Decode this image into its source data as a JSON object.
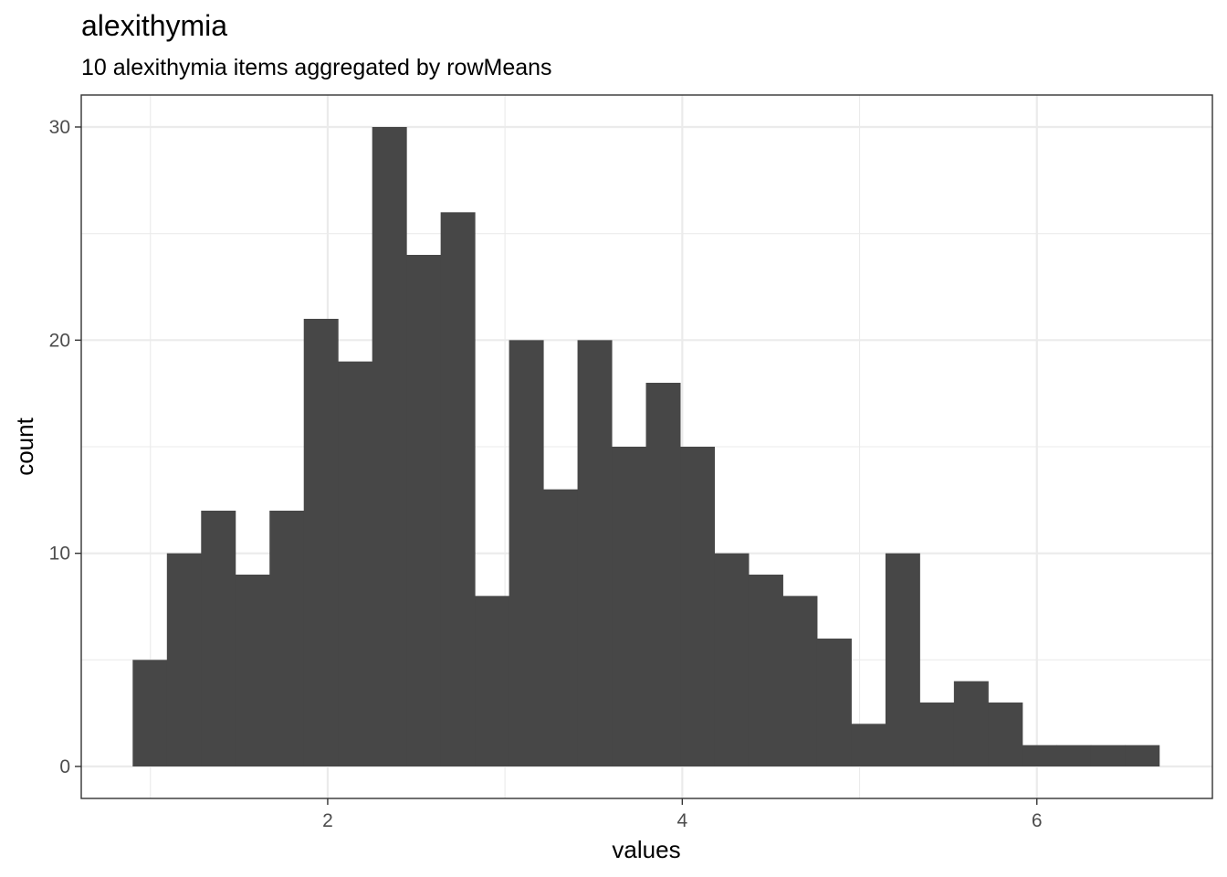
{
  "chart_data": {
    "type": "bar",
    "title": "alexithymia",
    "subtitle": "10 alexithymia items aggregated by rowMeans",
    "xlabel": "values",
    "ylabel": "count",
    "bin_width": 0.193,
    "bins": [
      {
        "x0": 0.9,
        "count": 5
      },
      {
        "x0": 1.093,
        "count": 10
      },
      {
        "x0": 1.286,
        "count": 12
      },
      {
        "x0": 1.479,
        "count": 9
      },
      {
        "x0": 1.672,
        "count": 12
      },
      {
        "x0": 1.865,
        "count": 21
      },
      {
        "x0": 2.058,
        "count": 19
      },
      {
        "x0": 2.251,
        "count": 30
      },
      {
        "x0": 2.444,
        "count": 24
      },
      {
        "x0": 2.637,
        "count": 26
      },
      {
        "x0": 2.83,
        "count": 8
      },
      {
        "x0": 3.023,
        "count": 20
      },
      {
        "x0": 3.216,
        "count": 13
      },
      {
        "x0": 3.409,
        "count": 20
      },
      {
        "x0": 3.602,
        "count": 15
      },
      {
        "x0": 3.795,
        "count": 18
      },
      {
        "x0": 3.988,
        "count": 15
      },
      {
        "x0": 4.181,
        "count": 10
      },
      {
        "x0": 4.374,
        "count": 9
      },
      {
        "x0": 4.567,
        "count": 8
      },
      {
        "x0": 4.76,
        "count": 6
      },
      {
        "x0": 4.953,
        "count": 2
      },
      {
        "x0": 5.146,
        "count": 10
      },
      {
        "x0": 5.339,
        "count": 3
      },
      {
        "x0": 5.532,
        "count": 4
      },
      {
        "x0": 5.725,
        "count": 3
      },
      {
        "x0": 5.918,
        "count": 1
      },
      {
        "x0": 6.111,
        "count": 1
      },
      {
        "x0": 6.304,
        "count": 1
      },
      {
        "x0": 6.497,
        "count": 1
      }
    ],
    "xlim": [
      0.61,
      6.99
    ],
    "ylim": [
      -1.5,
      31.5
    ],
    "x_major_ticks": [
      2,
      4,
      6
    ],
    "x_minor_ticks": [
      1,
      3,
      5
    ],
    "y_major_ticks": [
      0,
      10,
      20,
      30
    ],
    "y_minor_ticks": [
      5,
      15,
      25
    ],
    "grid": true,
    "bar_color": "#474747",
    "grid_color": "#ebebeb"
  }
}
